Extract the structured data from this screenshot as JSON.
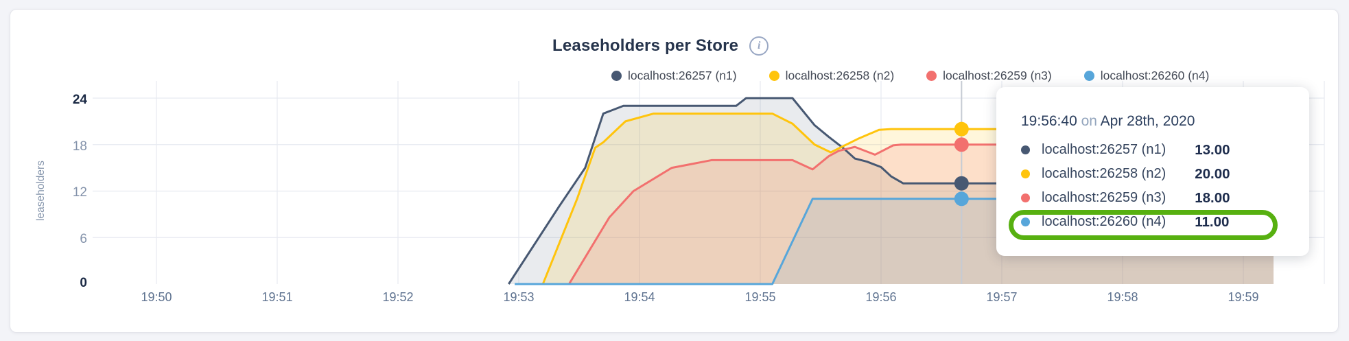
{
  "header": {
    "title": "Leaseholders per Store",
    "info_icon": "i"
  },
  "legend": {
    "items": [
      {
        "label": "localhost:26257 (n1)",
        "color": "#475872"
      },
      {
        "label": "localhost:26258 (n2)",
        "color": "#ffc40c"
      },
      {
        "label": "localhost:26259 (n3)",
        "color": "#f2706e"
      },
      {
        "label": "localhost:26260 (n4)",
        "color": "#57a6da"
      }
    ]
  },
  "chart_data": {
    "type": "area",
    "title": "Leaseholders per Store",
    "ylabel": "leaseholders",
    "ylim": [
      0,
      24
    ],
    "grid": true,
    "legend_position": "top",
    "x_ticks": [
      {
        "label": "19:50",
        "s": 0
      },
      {
        "label": "19:51",
        "s": 60
      },
      {
        "label": "19:52",
        "s": 120
      },
      {
        "label": "19:53",
        "s": 180
      },
      {
        "label": "19:54",
        "s": 240
      },
      {
        "label": "19:55",
        "s": 300
      },
      {
        "label": "19:56",
        "s": 360
      },
      {
        "label": "19:57",
        "s": 420
      },
      {
        "label": "19:58",
        "s": 480
      },
      {
        "label": "19:59",
        "s": 540
      }
    ],
    "y_ticks": [
      {
        "v": 0,
        "label": "0",
        "emphasis": true
      },
      {
        "v": 6,
        "label": "6",
        "emphasis": false
      },
      {
        "v": 12,
        "label": "12",
        "emphasis": false
      },
      {
        "v": 18,
        "label": "18",
        "emphasis": false
      },
      {
        "v": 24,
        "label": "24",
        "emphasis": true
      }
    ],
    "series": [
      {
        "name": "localhost:26257 (n1)",
        "node": "n1",
        "color": "#475872",
        "fill_opacity": 0.12,
        "points": [
          [
            175,
            0
          ],
          [
            200,
            10
          ],
          [
            213,
            15
          ],
          [
            222,
            22
          ],
          [
            232,
            23
          ],
          [
            288,
            23
          ],
          [
            293,
            24
          ],
          [
            316,
            24
          ],
          [
            327,
            20.5
          ],
          [
            334,
            19
          ],
          [
            341,
            17.6
          ],
          [
            347,
            16.2
          ],
          [
            353,
            15.8
          ],
          [
            360,
            15.1
          ],
          [
            365,
            13.9
          ],
          [
            371,
            13
          ],
          [
            555,
            13
          ]
        ]
      },
      {
        "name": "localhost:26258 (n2)",
        "node": "n2",
        "color": "#ffc40c",
        "fill_opacity": 0.15,
        "points": [
          [
            192,
            0
          ],
          [
            209,
            11
          ],
          [
            218,
            17.6
          ],
          [
            222,
            18.3
          ],
          [
            233,
            21
          ],
          [
            247,
            22
          ],
          [
            306,
            22
          ],
          [
            316,
            20.7
          ],
          [
            327,
            18
          ],
          [
            335,
            17
          ],
          [
            349,
            18.8
          ],
          [
            359,
            19.9
          ],
          [
            365,
            20
          ],
          [
            555,
            20
          ]
        ]
      },
      {
        "name": "localhost:26259 (n3)",
        "node": "n3",
        "color": "#f2706e",
        "fill_opacity": 0.17,
        "points": [
          [
            205,
            0
          ],
          [
            225,
            8.6
          ],
          [
            237,
            12
          ],
          [
            256,
            15
          ],
          [
            276,
            16
          ],
          [
            316,
            16
          ],
          [
            326,
            14.8
          ],
          [
            334,
            16.5
          ],
          [
            339,
            17.2
          ],
          [
            347,
            17.7
          ],
          [
            357,
            16.7
          ],
          [
            366,
            17.9
          ],
          [
            370,
            18
          ],
          [
            555,
            18
          ]
        ]
      },
      {
        "name": "localhost:26260 (n4)",
        "node": "n4",
        "color": "#57a6da",
        "fill_opacity": 0.13,
        "points": [
          [
            178,
            0
          ],
          [
            306,
            0
          ],
          [
            326,
            11
          ],
          [
            555,
            11
          ]
        ]
      }
    ],
    "hover": {
      "time_label": "19:56:40",
      "seconds": 400,
      "values": [
        13,
        20,
        18,
        11
      ]
    }
  },
  "tooltip": {
    "time": "19:56:40",
    "conjunction": "on",
    "date": "Apr 28th, 2020",
    "rows": [
      {
        "label": "localhost:26257 (n1)",
        "value": "13.00",
        "color": "#475872"
      },
      {
        "label": "localhost:26258 (n2)",
        "value": "20.00",
        "color": "#ffc40c"
      },
      {
        "label": "localhost:26259 (n3)",
        "value": "18.00",
        "color": "#f2706e"
      },
      {
        "label": "localhost:26260 (n4)",
        "value": "11.00",
        "color": "#57a6da"
      }
    ],
    "highlighted_row": "localhost:26260 (n4)"
  },
  "annotation": {
    "type": "ellipse-highlight",
    "color": "#57b010",
    "target": "localhost:26260 (n4) tooltip row"
  }
}
